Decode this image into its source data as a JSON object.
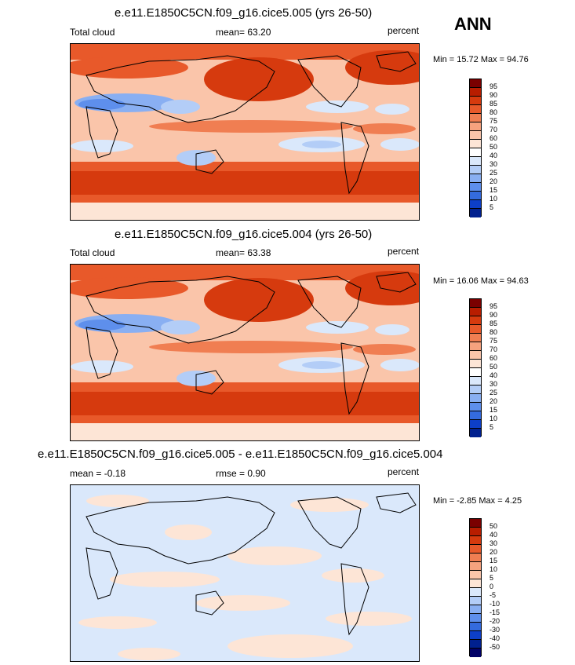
{
  "season": "ANN",
  "panels": [
    {
      "title": "e.e11.E1850C5CN.f09_g16.cice5.005 (yrs 26-50)",
      "left_label": "Total cloud",
      "center_label": "mean=  63.20",
      "units": "percent",
      "minmax": "Min =  15.72 Max =  94.76",
      "levels": [
        "95",
        "90",
        "85",
        "80",
        "75",
        "70",
        "60",
        "50",
        "40",
        "30",
        "25",
        "20",
        "15",
        "10",
        "5"
      ]
    },
    {
      "title": "e.e11.E1850C5CN.f09_g16.cice5.004 (yrs 26-50)",
      "left_label": "Total cloud",
      "center_label": "mean=  63.38",
      "units": "percent",
      "minmax": "Min =  16.06 Max =  94.63",
      "levels": [
        "95",
        "90",
        "85",
        "80",
        "75",
        "70",
        "60",
        "50",
        "40",
        "30",
        "25",
        "20",
        "15",
        "10",
        "5"
      ]
    },
    {
      "title": "e.e11.E1850C5CN.f09_g16.cice5.005 - e.e11.E1850C5CN.f09_g16.cice5.004",
      "left_label": "mean =  -0.18",
      "center_label": "rmse =  0.90",
      "units": "percent",
      "minmax": "Min =  -2.85 Max =   4.25",
      "levels": [
        "50",
        "40",
        "30",
        "20",
        "15",
        "10",
        "5",
        "0",
        "-5",
        "-10",
        "-15",
        "-20",
        "-30",
        "-40",
        "-50"
      ]
    }
  ],
  "colors": {
    "scale": [
      "#7a0000",
      "#b81d00",
      "#d63a0e",
      "#e8592a",
      "#f07e52",
      "#f6a27e",
      "#fac5aa",
      "#fde5d6",
      "#ffffff",
      "#dae8fb",
      "#b3cdf7",
      "#89aff2",
      "#5e8fec",
      "#346bde",
      "#0d3fc8",
      "#00208f",
      "#000066"
    ],
    "land_line": "#000000"
  }
}
